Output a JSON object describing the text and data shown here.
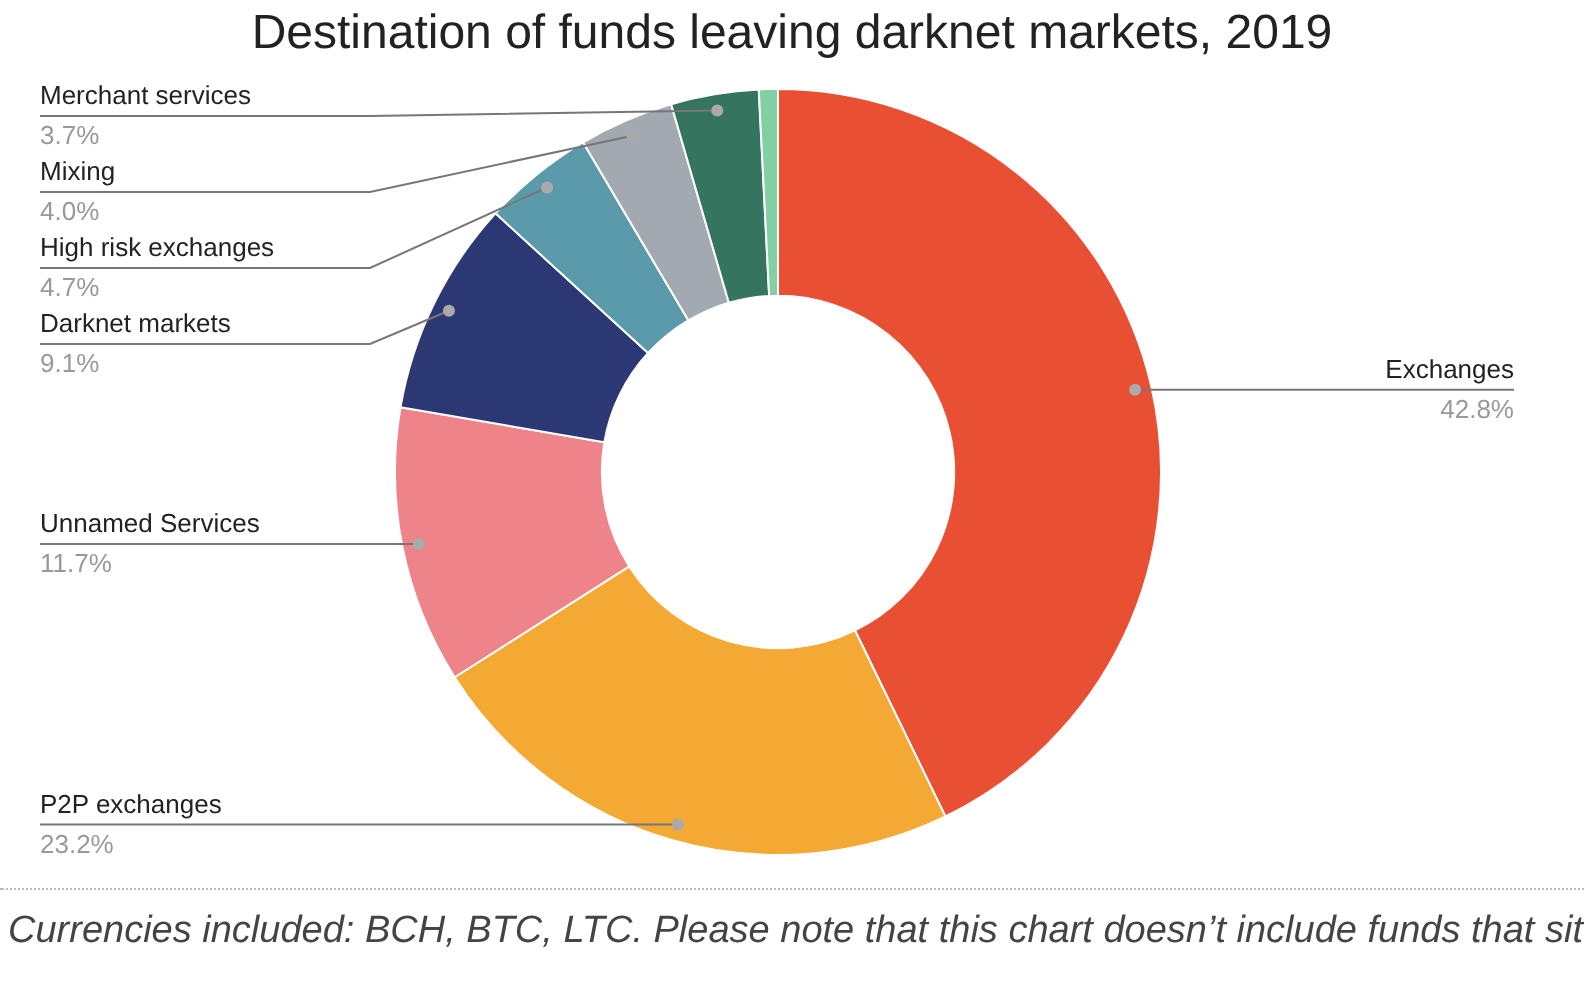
{
  "chart_data": {
    "type": "donut",
    "title": "Destination of funds leaving darknet markets, 2019",
    "categories": [
      "Exchanges",
      "P2P exchanges",
      "Unnamed Services",
      "Darknet markets",
      "High risk exchanges",
      "Mixing",
      "Merchant services",
      null
    ],
    "values": [
      42.8,
      23.2,
      11.7,
      9.1,
      4.7,
      4.0,
      3.7,
      0.8
    ],
    "value_labels": [
      "42.8%",
      "23.2%",
      "11.7%",
      "9.1%",
      "4.7%",
      "4.0%",
      "3.7%",
      null
    ],
    "colors": [
      "#e94f33",
      "#f4a935",
      "#ee848a",
      "#2b3873",
      "#5b9aaa",
      "#a2a9b1",
      "#35745f",
      "#83cfa4"
    ],
    "annotations": [
      "Currencies included: BCH, BTC, LTC. Please note that this chart doesn’t include funds that sit"
    ]
  }
}
